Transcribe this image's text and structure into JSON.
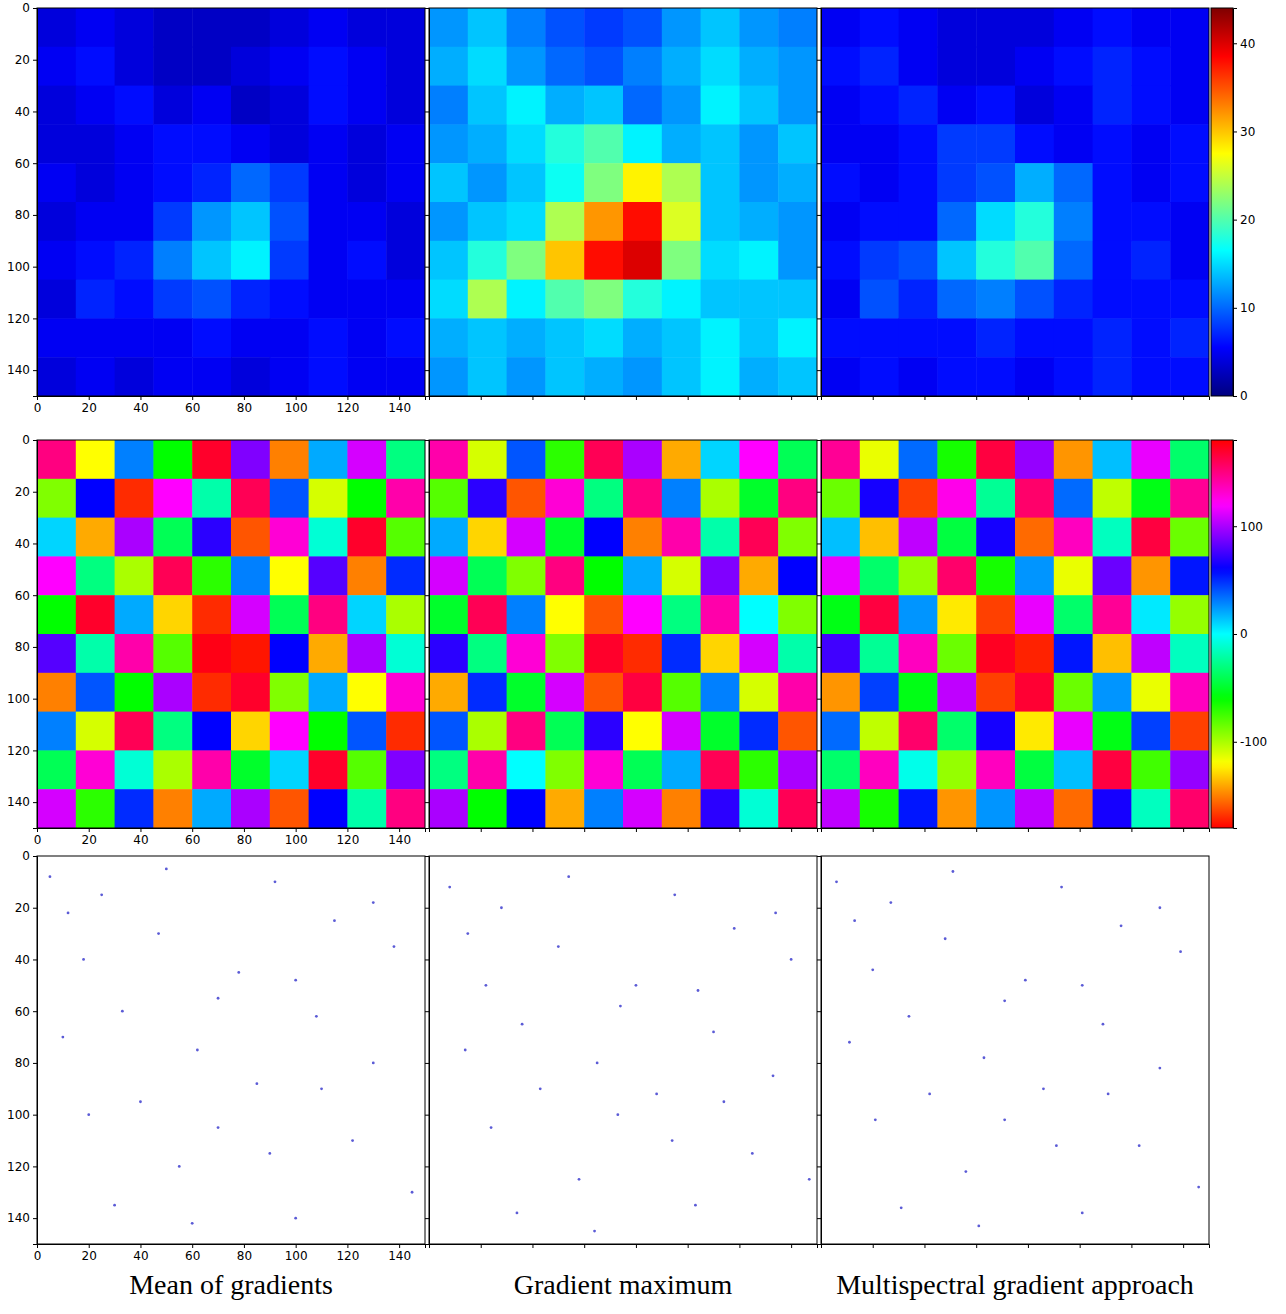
{
  "chart_data": [
    {
      "type": "heatmap",
      "color": "jet",
      "xlim": [
        0,
        150
      ],
      "ylim": [
        150,
        0
      ],
      "xticks": [
        0,
        20,
        40,
        60,
        80,
        100,
        120,
        140
      ],
      "yticks": [
        0,
        20,
        40,
        60,
        80,
        100,
        120,
        140
      ],
      "zlim": [
        0,
        44
      ],
      "cells": [
        [
          4,
          5,
          4,
          3,
          3,
          3,
          4,
          5,
          4,
          4
        ],
        [
          5,
          6,
          4,
          3,
          3,
          4,
          5,
          6,
          5,
          4
        ],
        [
          4,
          5,
          6,
          4,
          5,
          3,
          4,
          6,
          5,
          4
        ],
        [
          4,
          4,
          5,
          6,
          6,
          5,
          4,
          5,
          4,
          5
        ],
        [
          5,
          4,
          5,
          6,
          7,
          10,
          8,
          5,
          4,
          5
        ],
        [
          4,
          5,
          5,
          8,
          12,
          14,
          9,
          5,
          5,
          4
        ],
        [
          5,
          6,
          7,
          11,
          14,
          16,
          8,
          5,
          6,
          4
        ],
        [
          4,
          7,
          6,
          8,
          9,
          7,
          6,
          5,
          5,
          5
        ],
        [
          5,
          5,
          5,
          5,
          6,
          5,
          5,
          6,
          5,
          6
        ],
        [
          4,
          5,
          4,
          5,
          5,
          4,
          5,
          6,
          5,
          5
        ]
      ]
    },
    {
      "type": "heatmap",
      "color": "jet",
      "xlim": [
        0,
        150
      ],
      "ylim": [
        150,
        0
      ],
      "xticks": [
        0,
        20,
        40,
        60,
        80,
        100,
        120,
        140
      ],
      "yticks": [
        0,
        20,
        40,
        60,
        80,
        100,
        120,
        140
      ],
      "tick_labels": false,
      "zlim": [
        0,
        44
      ],
      "cells": [
        [
          12,
          14,
          11,
          9,
          8,
          9,
          12,
          14,
          12,
          11
        ],
        [
          13,
          15,
          12,
          10,
          9,
          11,
          13,
          15,
          13,
          12
        ],
        [
          11,
          14,
          16,
          13,
          14,
          10,
          12,
          16,
          14,
          12
        ],
        [
          12,
          13,
          15,
          18,
          20,
          16,
          13,
          14,
          12,
          14
        ],
        [
          14,
          12,
          14,
          17,
          22,
          28,
          24,
          14,
          12,
          13
        ],
        [
          12,
          14,
          15,
          24,
          32,
          38,
          26,
          14,
          13,
          12
        ],
        [
          14,
          18,
          22,
          30,
          38,
          40,
          22,
          15,
          16,
          12
        ],
        [
          15,
          24,
          16,
          20,
          22,
          18,
          16,
          14,
          14,
          14
        ],
        [
          13,
          14,
          13,
          14,
          15,
          13,
          14,
          16,
          14,
          16
        ],
        [
          12,
          14,
          12,
          14,
          13,
          12,
          14,
          16,
          13,
          14
        ]
      ]
    },
    {
      "type": "heatmap",
      "color": "jet",
      "xlim": [
        0,
        150
      ],
      "ylim": [
        150,
        0
      ],
      "xticks": [
        0,
        20,
        40,
        60,
        80,
        100,
        120,
        140
      ],
      "yticks": [
        0,
        20,
        40,
        60,
        80,
        100,
        120,
        140
      ],
      "tick_labels": false,
      "zlim": [
        0,
        44
      ],
      "zticks": [
        0,
        10,
        20,
        30,
        40
      ],
      "cells": [
        [
          5,
          6,
          5,
          4,
          4,
          4,
          5,
          6,
          5,
          5
        ],
        [
          6,
          7,
          5,
          4,
          4,
          5,
          6,
          7,
          6,
          5
        ],
        [
          5,
          6,
          7,
          5,
          6,
          4,
          5,
          7,
          6,
          5
        ],
        [
          5,
          5,
          6,
          8,
          8,
          6,
          5,
          6,
          5,
          6
        ],
        [
          6,
          5,
          6,
          8,
          9,
          13,
          10,
          6,
          5,
          6
        ],
        [
          5,
          6,
          6,
          10,
          15,
          18,
          11,
          6,
          6,
          5
        ],
        [
          6,
          8,
          9,
          14,
          18,
          20,
          10,
          6,
          7,
          5
        ],
        [
          5,
          9,
          7,
          10,
          11,
          9,
          7,
          6,
          6,
          6
        ],
        [
          6,
          6,
          6,
          6,
          7,
          6,
          6,
          7,
          6,
          7
        ],
        [
          5,
          6,
          5,
          6,
          6,
          5,
          6,
          7,
          6,
          6
        ]
      ]
    },
    {
      "type": "heatmap",
      "color": "hsv",
      "xlim": [
        0,
        150
      ],
      "ylim": [
        150,
        0
      ],
      "xticks": [
        0,
        20,
        40,
        60,
        80,
        100,
        120,
        140
      ],
      "yticks": [
        0,
        20,
        40,
        60,
        80,
        100,
        120,
        140
      ],
      "zlim": [
        -180,
        180
      ],
      "cells": [
        [
          150,
          -120,
          30,
          -60,
          170,
          90,
          -150,
          20,
          110,
          -30
        ],
        [
          -90,
          60,
          -170,
          120,
          -20,
          160,
          40,
          -110,
          -60,
          140
        ],
        [
          10,
          -140,
          100,
          -40,
          70,
          -160,
          130,
          -10,
          170,
          -80
        ],
        [
          120,
          -30,
          -100,
          160,
          -70,
          30,
          -120,
          80,
          -150,
          50
        ],
        [
          -60,
          170,
          20,
          -130,
          -170,
          110,
          -40,
          150,
          10,
          -100
        ],
        [
          80,
          -20,
          140,
          -80,
          175,
          -175,
          60,
          -140,
          100,
          -10
        ],
        [
          -150,
          40,
          -60,
          100,
          -170,
          170,
          -90,
          20,
          -120,
          130
        ],
        [
          30,
          -110,
          160,
          -30,
          60,
          -130,
          120,
          -60,
          40,
          -170
        ],
        [
          -40,
          130,
          -10,
          -100,
          140,
          -50,
          10,
          170,
          -80,
          90
        ],
        [
          110,
          -70,
          50,
          -150,
          20,
          100,
          -160,
          60,
          -20,
          150
        ]
      ]
    },
    {
      "type": "heatmap",
      "color": "hsv",
      "xlim": [
        0,
        150
      ],
      "ylim": [
        150,
        0
      ],
      "xticks": [
        0,
        20,
        40,
        60,
        80,
        100,
        120,
        140
      ],
      "yticks": [
        0,
        20,
        40,
        60,
        80,
        100,
        120,
        140
      ],
      "tick_labels": false,
      "zlim": [
        -180,
        180
      ],
      "cells": [
        [
          140,
          -110,
          40,
          -70,
          160,
          100,
          -140,
          10,
          120,
          -40
        ],
        [
          -80,
          70,
          -160,
          130,
          -30,
          150,
          30,
          -100,
          -50,
          150
        ],
        [
          20,
          -130,
          110,
          -50,
          60,
          -150,
          140,
          -20,
          160,
          -90
        ],
        [
          110,
          -40,
          -90,
          150,
          -60,
          20,
          -110,
          90,
          -140,
          60
        ],
        [
          -50,
          160,
          30,
          -120,
          -160,
          120,
          -30,
          140,
          0,
          -90
        ],
        [
          70,
          -30,
          130,
          -90,
          170,
          -170,
          50,
          -130,
          110,
          -20
        ],
        [
          -140,
          50,
          -50,
          110,
          -160,
          165,
          -80,
          30,
          -110,
          140
        ],
        [
          40,
          -100,
          150,
          -40,
          70,
          -120,
          110,
          -50,
          50,
          -160
        ],
        [
          -30,
          140,
          0,
          -90,
          130,
          -40,
          20,
          160,
          -70,
          100
        ],
        [
          100,
          -60,
          60,
          -140,
          30,
          110,
          -150,
          70,
          -10,
          160
        ]
      ]
    },
    {
      "type": "heatmap",
      "color": "hsv",
      "xlim": [
        0,
        150
      ],
      "ylim": [
        150,
        0
      ],
      "xticks": [
        0,
        20,
        40,
        60,
        80,
        100,
        120,
        140
      ],
      "yticks": [
        0,
        20,
        40,
        60,
        80,
        100,
        120,
        140
      ],
      "tick_labels": false,
      "zlim": [
        -180,
        180
      ],
      "zticks": [
        -100,
        0,
        100
      ],
      "cells": [
        [
          145,
          -115,
          35,
          -65,
          165,
          95,
          -145,
          15,
          115,
          -35
        ],
        [
          -85,
          65,
          -165,
          125,
          -25,
          155,
          35,
          -105,
          -55,
          145
        ],
        [
          15,
          -135,
          105,
          -45,
          65,
          -155,
          135,
          -15,
          165,
          -85
        ],
        [
          115,
          -35,
          -95,
          155,
          -65,
          25,
          -115,
          85,
          -145,
          55
        ],
        [
          -55,
          165,
          25,
          -125,
          -165,
          115,
          -35,
          145,
          5,
          -95
        ],
        [
          75,
          -25,
          135,
          -85,
          172,
          -172,
          55,
          -135,
          105,
          -15
        ],
        [
          -145,
          45,
          -55,
          105,
          -165,
          168,
          -85,
          25,
          -115,
          135
        ],
        [
          35,
          -105,
          155,
          -35,
          65,
          -125,
          115,
          -55,
          45,
          -165
        ],
        [
          -35,
          135,
          -5,
          -95,
          135,
          -45,
          15,
          165,
          -75,
          95
        ],
        [
          105,
          -65,
          55,
          -145,
          25,
          105,
          -155,
          65,
          -15,
          155
        ]
      ]
    },
    {
      "type": "scatter",
      "color": "#5b5bd6",
      "marker": "dot",
      "xlim": [
        0,
        150
      ],
      "ylim": [
        150,
        0
      ],
      "xticks": [
        0,
        20,
        40,
        60,
        80,
        100,
        120,
        140
      ],
      "yticks": [
        0,
        20,
        40,
        60,
        80,
        100,
        120,
        140
      ],
      "title": "Mean of gradients",
      "x": [
        5,
        12,
        18,
        25,
        33,
        40,
        47,
        55,
        62,
        70,
        78,
        85,
        92,
        100,
        108,
        115,
        122,
        130,
        138,
        145,
        10,
        30,
        50,
        70,
        90,
        110,
        130,
        20,
        60,
        100
      ],
      "y": [
        8,
        22,
        40,
        15,
        60,
        95,
        30,
        120,
        75,
        105,
        45,
        88,
        10,
        140,
        62,
        25,
        110,
        80,
        35,
        130,
        70,
        135,
        5,
        55,
        115,
        90,
        18,
        100,
        142,
        48
      ]
    },
    {
      "type": "scatter",
      "color": "#5b5bd6",
      "marker": "dot",
      "xlim": [
        0,
        150
      ],
      "ylim": [
        150,
        0
      ],
      "xticks": [
        0,
        20,
        40,
        60,
        80,
        100,
        120,
        140
      ],
      "yticks": [
        0,
        20,
        40,
        60,
        80,
        100,
        120,
        140
      ],
      "tick_labels": false,
      "title": "Gradient maximum",
      "x": [
        8,
        15,
        22,
        28,
        36,
        43,
        50,
        58,
        65,
        73,
        80,
        88,
        95,
        103,
        110,
        118,
        125,
        133,
        140,
        147,
        14,
        34,
        54,
        74,
        94,
        114,
        134,
        24,
        64,
        104
      ],
      "y": [
        12,
        30,
        50,
        20,
        65,
        90,
        35,
        125,
        80,
        100,
        50,
        92,
        15,
        135,
        68,
        28,
        115,
        85,
        40,
        125,
        75,
        138,
        8,
        58,
        110,
        95,
        22,
        105,
        145,
        52
      ]
    },
    {
      "type": "scatter",
      "color": "#5b5bd6",
      "marker": "dot",
      "xlim": [
        0,
        150
      ],
      "ylim": [
        150,
        0
      ],
      "xticks": [
        0,
        20,
        40,
        60,
        80,
        100,
        120,
        140
      ],
      "yticks": [
        0,
        20,
        40,
        60,
        80,
        100,
        120,
        140
      ],
      "tick_labels": false,
      "title": "Multispectral gradient approach",
      "x": [
        6,
        13,
        20,
        27,
        34,
        42,
        48,
        56,
        63,
        71,
        79,
        86,
        93,
        101,
        109,
        116,
        123,
        131,
        139,
        146,
        11,
        31,
        51,
        71,
        91,
        111,
        131,
        21,
        61,
        101
      ],
      "y": [
        10,
        25,
        44,
        18,
        62,
        92,
        32,
        122,
        78,
        102,
        48,
        90,
        12,
        138,
        65,
        27,
        112,
        82,
        37,
        128,
        72,
        136,
        6,
        56,
        112,
        92,
        20,
        102,
        143,
        50
      ]
    }
  ]
}
